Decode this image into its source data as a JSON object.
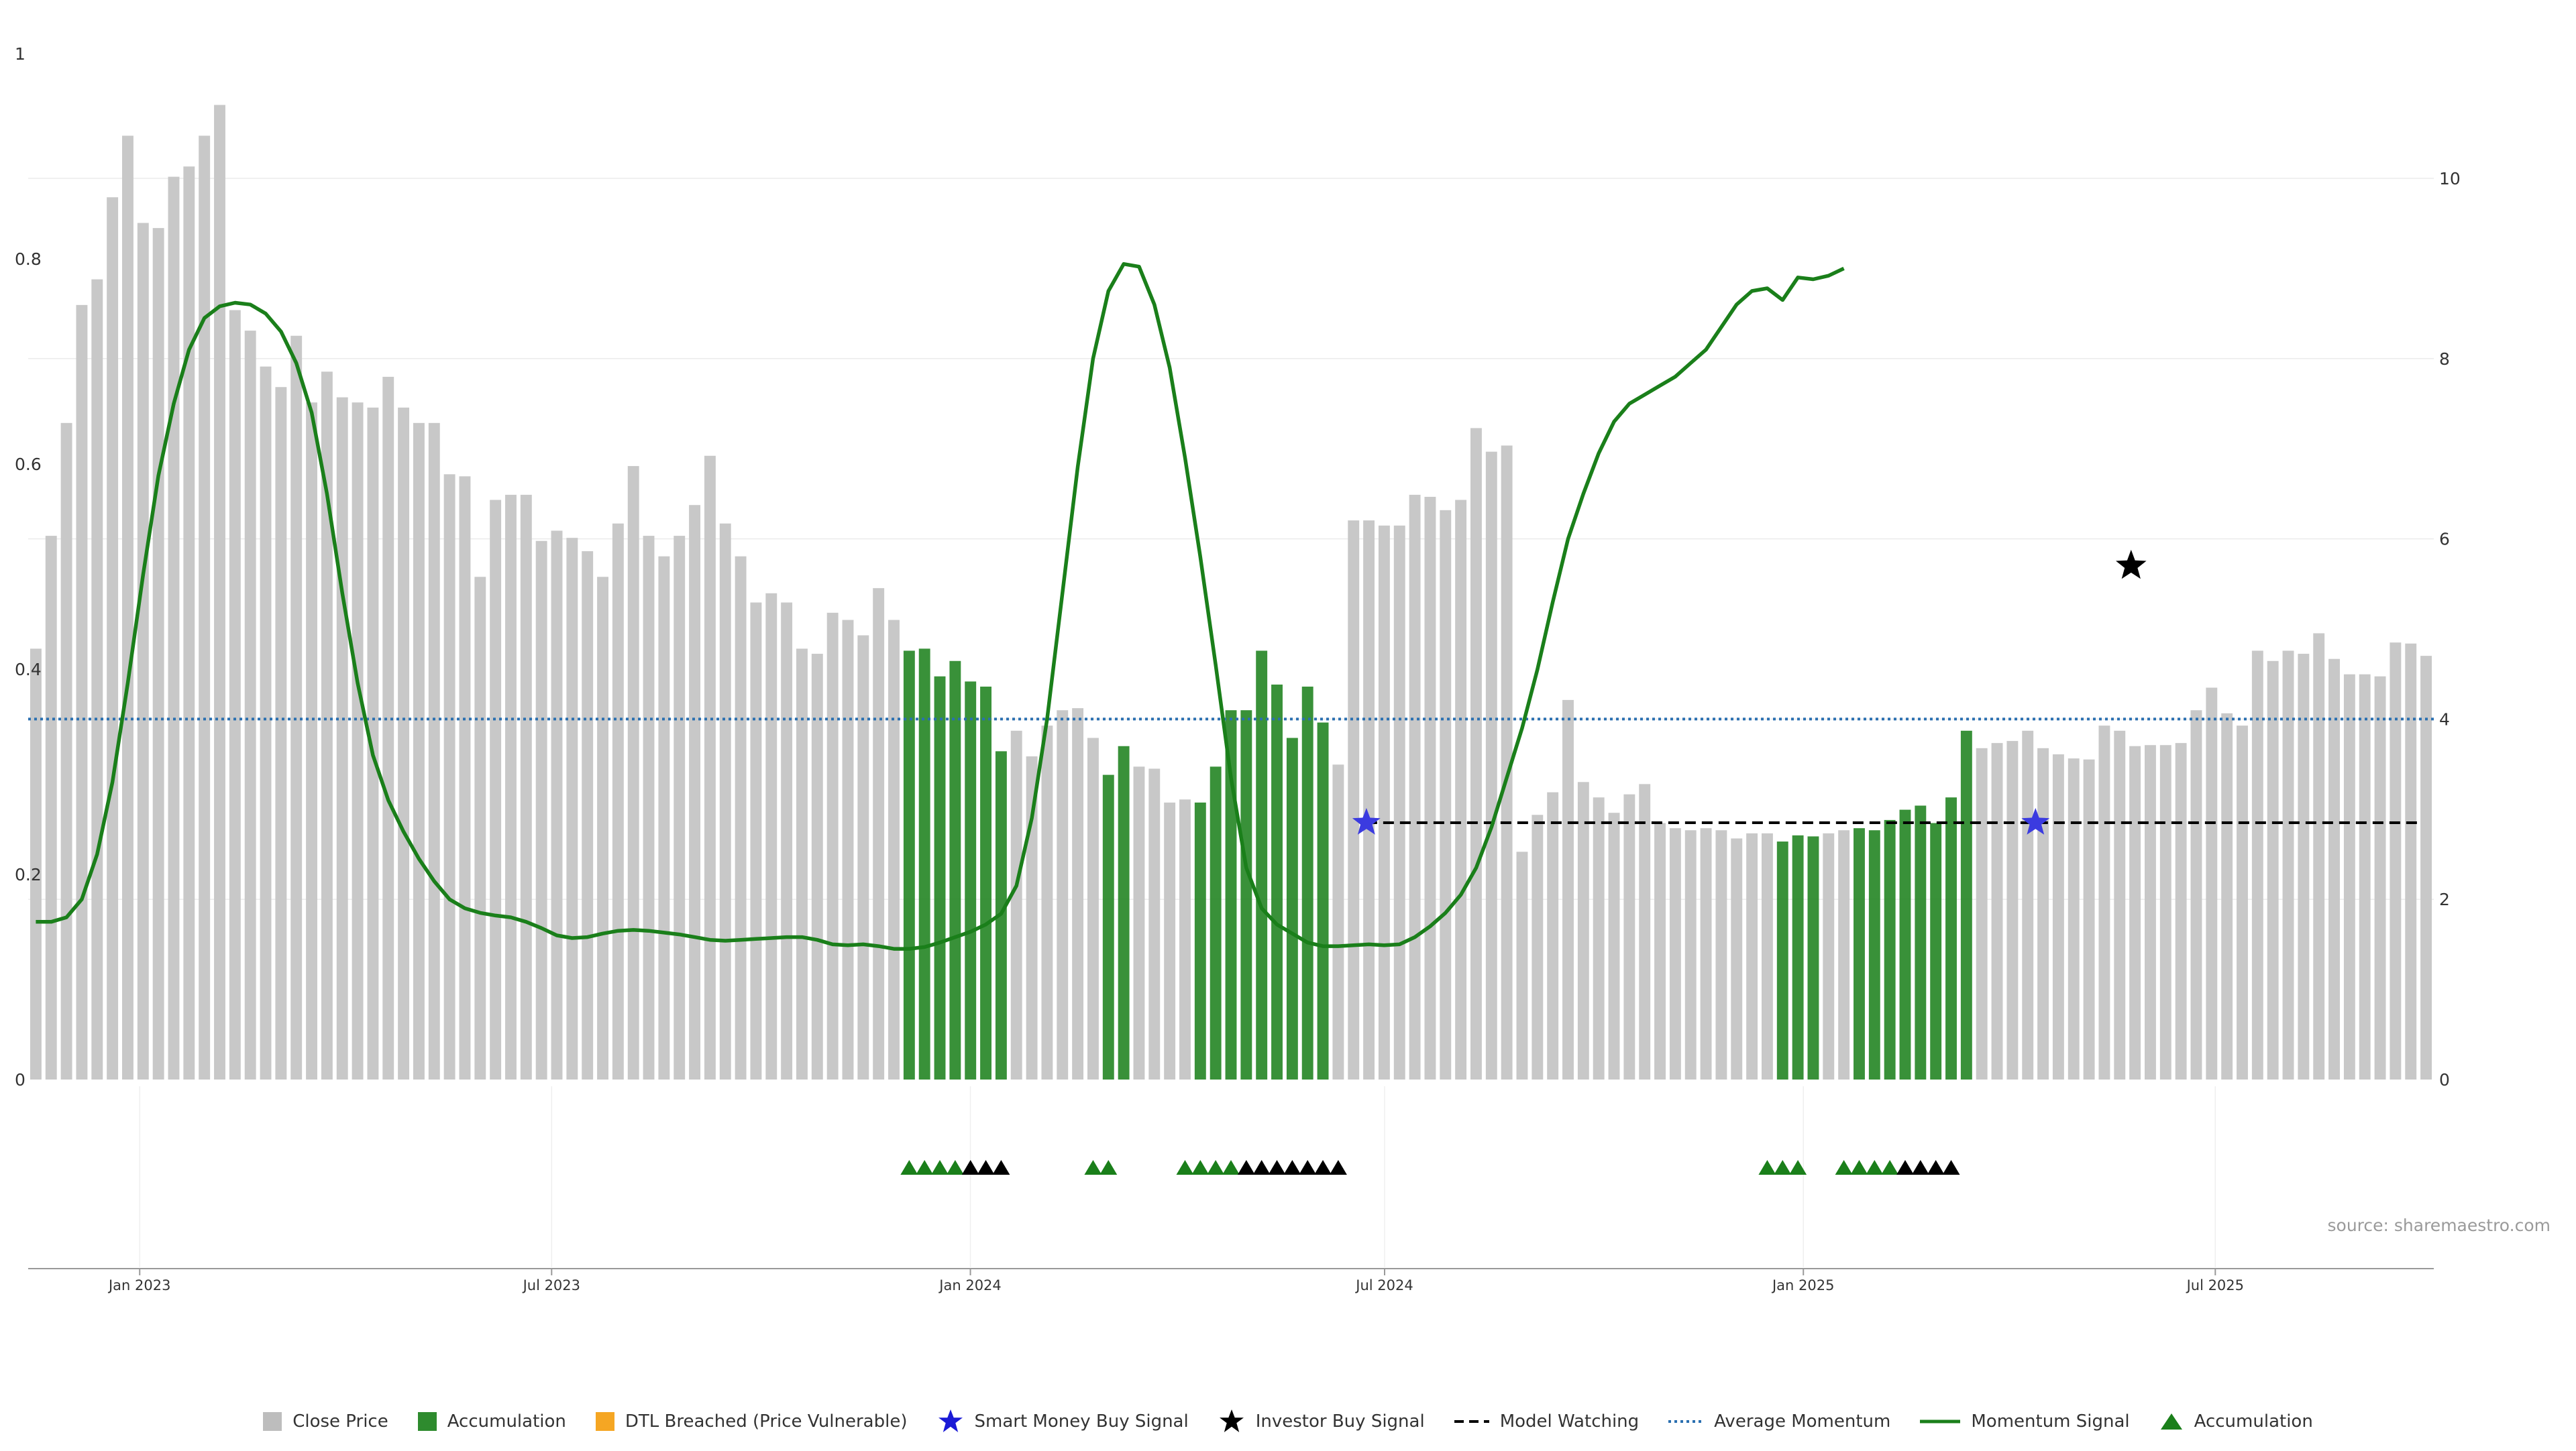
{
  "chart_data": {
    "type": "bar",
    "title": "",
    "xlabel": "",
    "ylabel": "",
    "y_left": {
      "ticks": [
        "0",
        "0.2",
        "0.4",
        "0.6",
        "0.8",
        "1"
      ],
      "ylim": [
        0,
        1.0
      ]
    },
    "y_right": {
      "ticks": [
        "0",
        "2",
        "4",
        "6",
        "8",
        "10"
      ],
      "ylim": [
        0,
        11.5
      ]
    },
    "x_ticks": [
      "Jan 2023",
      "Jul 2023",
      "Jan 2024",
      "Jul 2024",
      "Jan 2025",
      "Jul 2025"
    ],
    "x_start": "2022-11-13",
    "x_end": "2025-10-05",
    "grid": "horizontal",
    "bar_dates_note": "weekly bars from 2022-11-13",
    "close_price": [
      0.42,
      0.53,
      0.64,
      0.755,
      0.78,
      0.86,
      0.92,
      0.835,
      0.83,
      0.88,
      0.89,
      0.92,
      0.95,
      0.75,
      0.73,
      0.695,
      0.675,
      0.725,
      0.66,
      0.69,
      0.665,
      0.66,
      0.655,
      0.685,
      0.655,
      0.64,
      0.64,
      0.59,
      0.588,
      0.49,
      0.565,
      0.57,
      0.57,
      0.525,
      0.535,
      0.528,
      0.515,
      0.49,
      0.542,
      0.598,
      0.53,
      0.51,
      0.53,
      0.56,
      0.608,
      0.542,
      0.51,
      0.465,
      0.474,
      0.465,
      0.42,
      0.415,
      0.455,
      0.448,
      0.433,
      0.479,
      0.448,
      0.418,
      0.42,
      0.393,
      0.408,
      0.388,
      0.383,
      0.32,
      0.34,
      0.315,
      0.345,
      0.36,
      0.362,
      0.333,
      0.297,
      0.325,
      0.305,
      0.303,
      0.27,
      0.273,
      0.27,
      0.305,
      0.36,
      0.36,
      0.418,
      0.385,
      0.333,
      0.383,
      0.348,
      0.307,
      0.545,
      0.545,
      0.54,
      0.54,
      0.57,
      0.568,
      0.555,
      0.565,
      0.635,
      0.612,
      0.618,
      0.222,
      0.258,
      0.28,
      0.37,
      0.29,
      0.275,
      0.26,
      0.278,
      0.288,
      0.25,
      0.245,
      0.243,
      0.245,
      0.243,
      0.235,
      0.24,
      0.24,
      0.232,
      0.238,
      0.237,
      0.24,
      0.243,
      0.245,
      0.243,
      0.253,
      0.263,
      0.267,
      0.25,
      0.275,
      0.34,
      0.323,
      0.328,
      0.33,
      0.34,
      0.323,
      0.317,
      0.313,
      0.312,
      0.345,
      0.34,
      0.325,
      0.326,
      0.326,
      0.328,
      0.36,
      0.382,
      0.357,
      0.345,
      0.418,
      0.408,
      0.418,
      0.415,
      0.435,
      0.41,
      0.395,
      0.395,
      0.393,
      0.426,
      0.425,
      0.413
    ],
    "accumulation_ranges": [
      [
        57,
        63
      ],
      [
        70,
        71
      ],
      [
        76,
        84
      ],
      [
        114,
        116
      ],
      [
        119,
        126
      ]
    ],
    "momentum_signal": [
      1.75,
      1.75,
      1.8,
      2.0,
      2.5,
      3.3,
      4.4,
      5.6,
      6.7,
      7.5,
      8.1,
      8.45,
      8.58,
      8.62,
      8.6,
      8.5,
      8.3,
      7.95,
      7.4,
      6.5,
      5.4,
      4.4,
      3.6,
      3.1,
      2.75,
      2.45,
      2.2,
      2.0,
      1.9,
      1.85,
      1.82,
      1.8,
      1.75,
      1.68,
      1.6,
      1.57,
      1.58,
      1.62,
      1.65,
      1.66,
      1.65,
      1.63,
      1.61,
      1.58,
      1.55,
      1.54,
      1.55,
      1.56,
      1.57,
      1.58,
      1.58,
      1.55,
      1.5,
      1.49,
      1.5,
      1.48,
      1.45,
      1.45,
      1.47,
      1.52,
      1.58,
      1.64,
      1.72,
      1.84,
      2.15,
      2.9,
      4.0,
      5.4,
      6.8,
      8.0,
      8.75,
      9.05,
      9.02,
      8.6,
      7.9,
      6.9,
      5.8,
      4.6,
      3.35,
      2.35,
      1.9,
      1.72,
      1.62,
      1.52,
      1.48,
      1.48,
      1.49,
      1.5,
      1.49,
      1.5,
      1.58,
      1.7,
      1.85,
      2.05,
      2.35,
      2.8,
      3.35,
      3.9,
      4.55,
      5.3,
      6.0,
      6.5,
      6.95,
      7.3,
      7.5,
      7.6,
      7.7,
      7.8,
      7.95,
      8.1,
      8.35,
      8.6,
      8.75,
      8.78,
      8.65,
      8.9,
      8.88,
      8.92,
      9.0
    ],
    "average_momentum": 4.0,
    "model_watching": 2.85,
    "smart_money_buy_signals": [
      {
        "x": "2024-06-23",
        "y": 2.85
      },
      {
        "x": "2025-04-13",
        "y": 2.85
      }
    ],
    "investor_buy_signals": [
      {
        "x": "2025-05-25",
        "y": 5.7
      }
    ],
    "accumulation_markers": {
      "green": [
        [
          57,
          60
        ],
        [
          69,
          70
        ],
        [
          75,
          78
        ],
        [
          113,
          115
        ],
        [
          118,
          121
        ]
      ],
      "black": [
        [
          61,
          63
        ],
        [
          79,
          85
        ],
        [
          122,
          125
        ]
      ]
    },
    "colors": {
      "close_price": "#c8c8c8",
      "accumulation": "#2e8b2e",
      "dtl": "#f5a623",
      "smart_money": "#1a1ad6",
      "investor": "#000000",
      "momentum": "#1a7f1a",
      "average": "#2a6fb0",
      "model": "#000000"
    }
  },
  "legend": {
    "close_price": "Close Price",
    "accumulation": "Accumulation",
    "dtl": "DTL Breached (Price Vulnerable)",
    "smart_money": "Smart Money Buy Signal",
    "investor": "Investor Buy Signal",
    "model_watching": "Model Watching",
    "average_momentum": "Average Momentum",
    "momentum_signal": "Momentum Signal",
    "accumulation_marker": "Accumulation"
  },
  "source": "source: sharemaestro.com"
}
